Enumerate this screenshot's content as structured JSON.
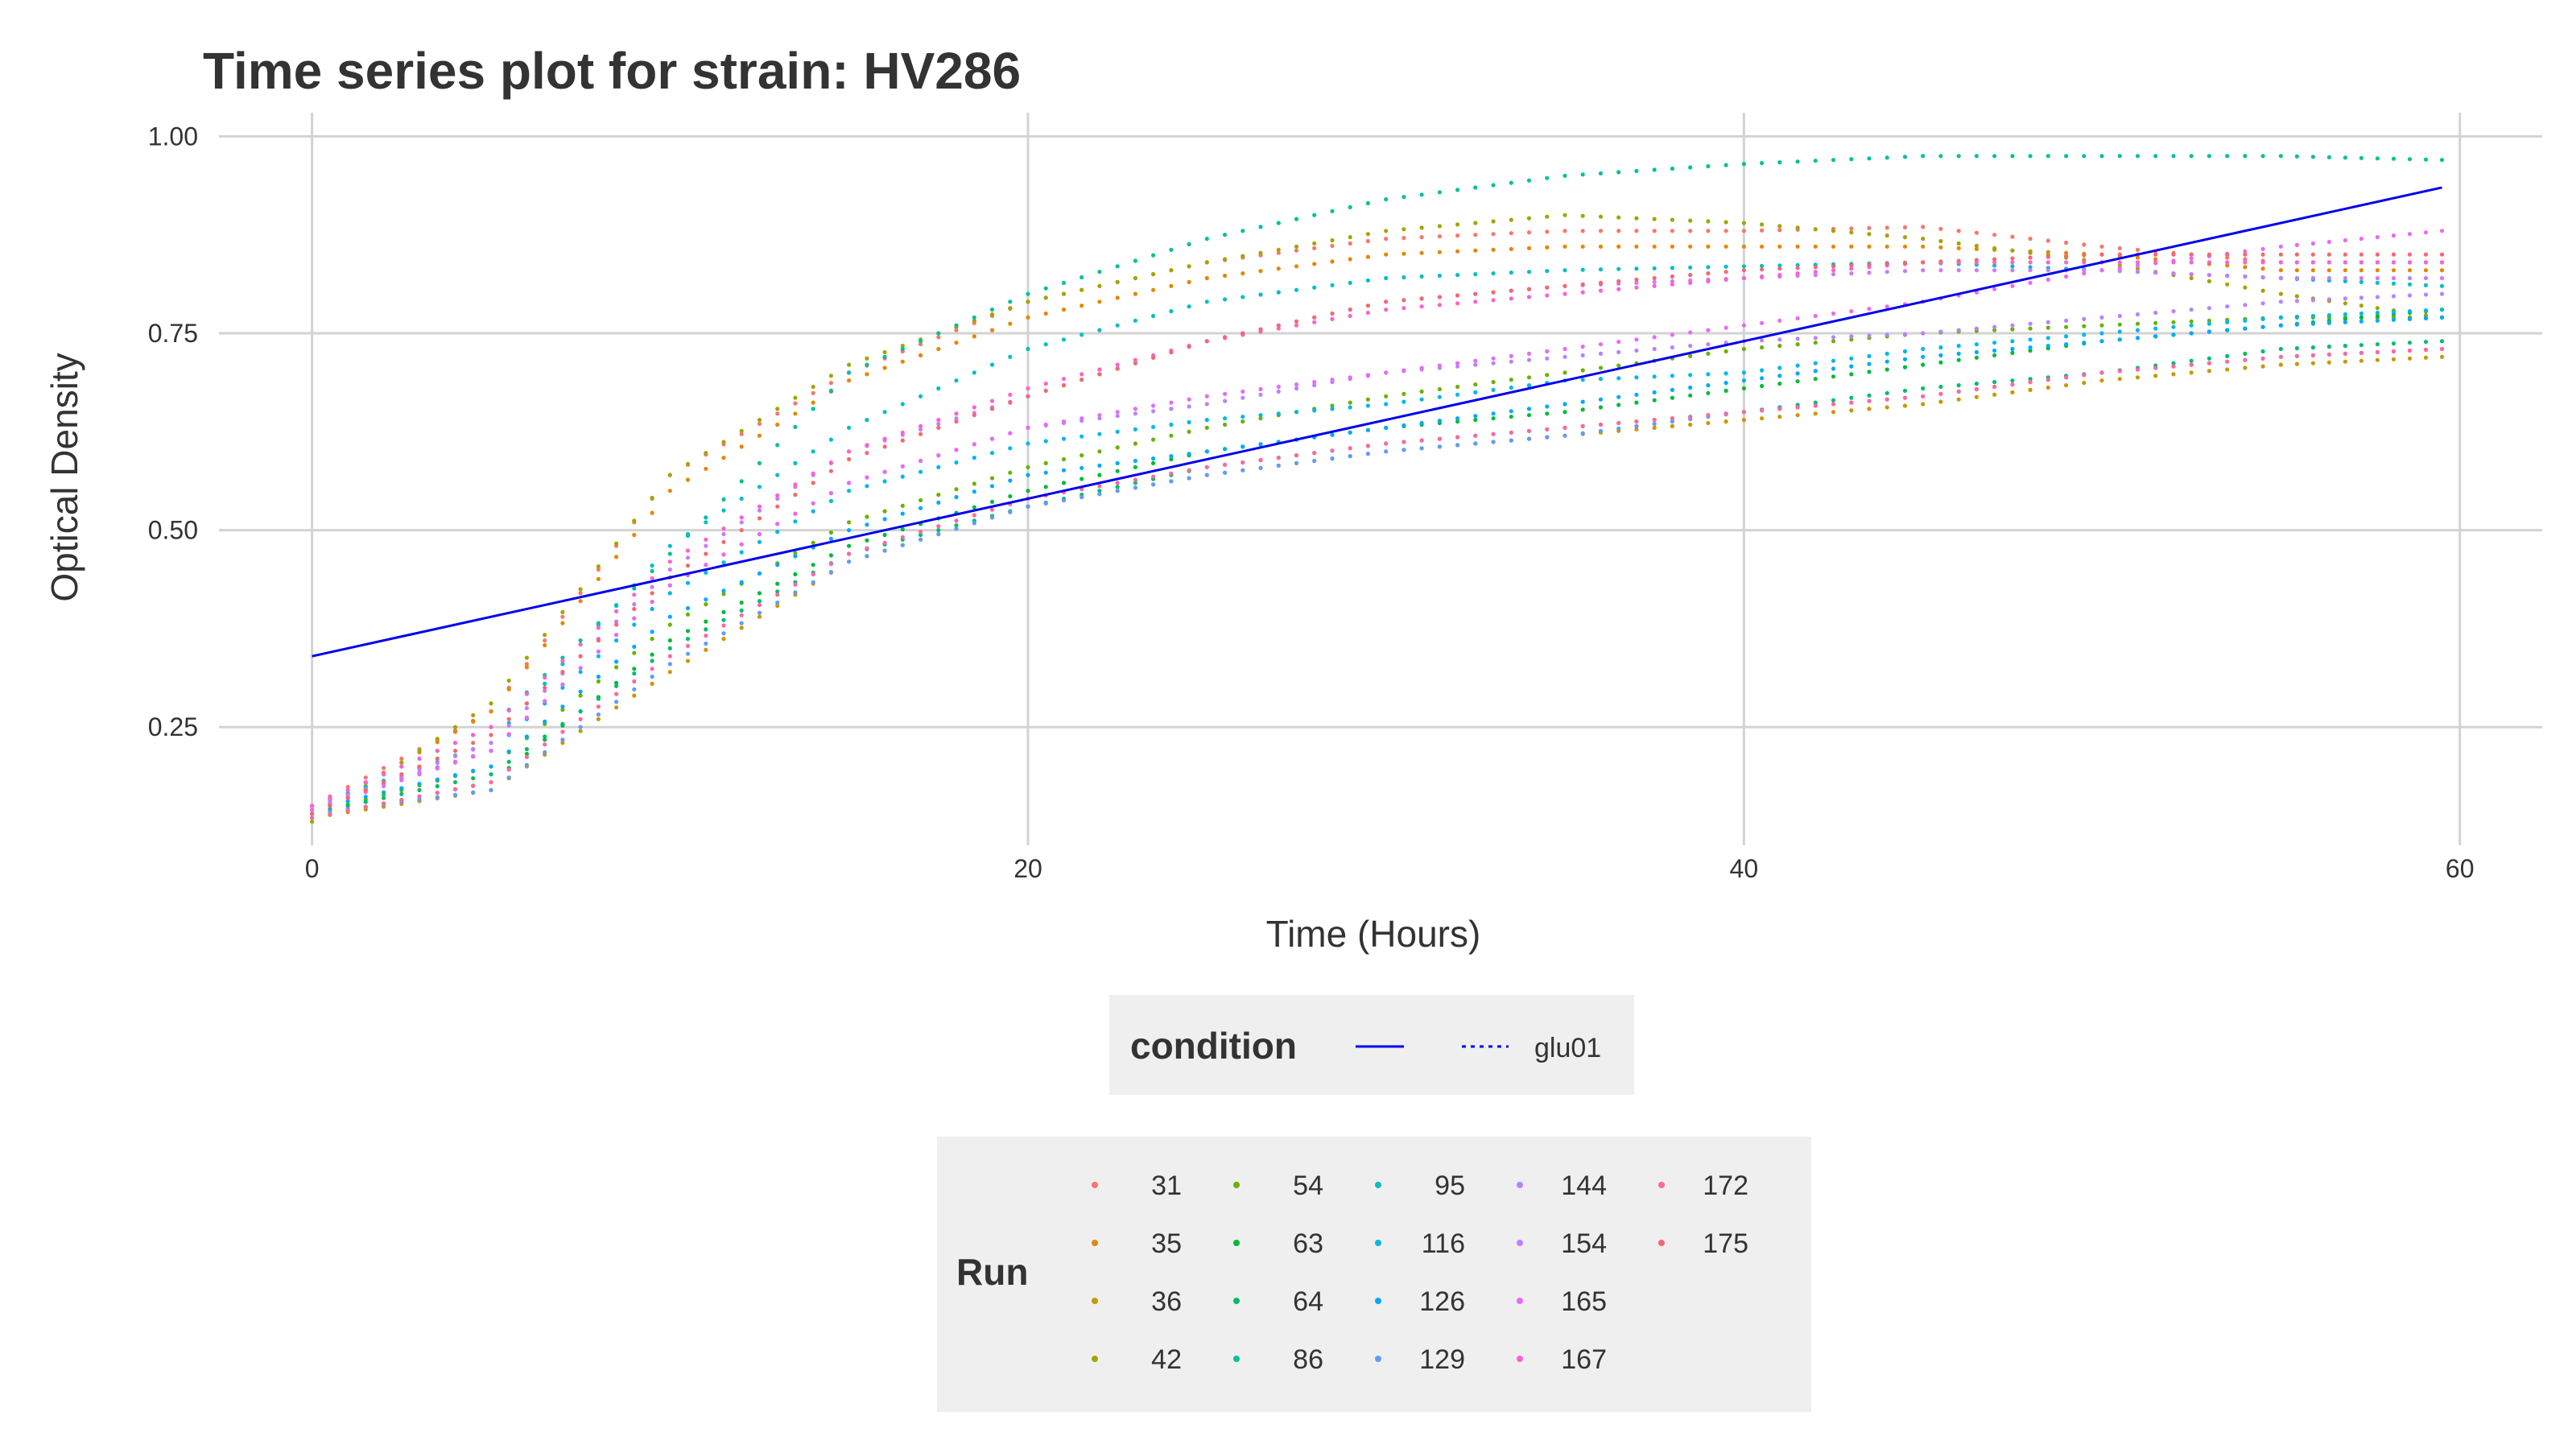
{
  "chart_data": {
    "type": "scatter",
    "title": "Time series plot for strain: HV286",
    "xlabel": "Time (Hours)",
    "ylabel": "Optical Density",
    "xlim": [
      -2.6,
      62.3
    ],
    "ylim": [
      0.1,
      1.03
    ],
    "x_ticks": [
      0,
      20,
      40,
      60
    ],
    "x_tick_labels": [
      "0",
      "20",
      "40",
      "60"
    ],
    "y_ticks": [
      0.25,
      0.5,
      0.75,
      1.0
    ],
    "y_tick_labels": [
      "0.25",
      "0.50",
      "0.75",
      "1.00"
    ],
    "grid": true,
    "legend_position": "bottom",
    "condition_legend": {
      "title": "condition",
      "entries": [
        {
          "label": "",
          "style": "solid",
          "color": "#0000ee"
        },
        {
          "label": "glu01",
          "style": "dotted",
          "color": "#0000ee"
        }
      ]
    },
    "fit_line": {
      "x": [
        0,
        59.5
      ],
      "y": [
        0.34,
        0.935
      ],
      "color": "#0000ee"
    },
    "run_legend_title": "Run",
    "series": [
      {
        "name": "31",
        "color": "#f8766d",
        "points": [
          [
            0,
            0.15
          ],
          [
            5,
            0.27
          ],
          [
            10,
            0.57
          ],
          [
            15,
            0.7
          ],
          [
            20,
            0.79
          ],
          [
            25,
            0.84
          ],
          [
            30,
            0.87
          ],
          [
            35,
            0.88
          ],
          [
            40,
            0.88
          ],
          [
            45,
            0.885
          ],
          [
            50,
            0.86
          ],
          [
            55,
            0.84
          ],
          [
            59.5,
            0.84
          ]
        ]
      },
      {
        "name": "35",
        "color": "#e58700",
        "points": [
          [
            0,
            0.14
          ],
          [
            5,
            0.27
          ],
          [
            10,
            0.55
          ],
          [
            15,
            0.69
          ],
          [
            20,
            0.77
          ],
          [
            25,
            0.82
          ],
          [
            30,
            0.85
          ],
          [
            35,
            0.86
          ],
          [
            40,
            0.86
          ],
          [
            45,
            0.86
          ],
          [
            50,
            0.85
          ],
          [
            55,
            0.83
          ],
          [
            59.5,
            0.83
          ]
        ]
      },
      {
        "name": "36",
        "color": "#c99800",
        "points": [
          [
            0,
            0.135
          ],
          [
            5,
            0.17
          ],
          [
            10,
            0.32
          ],
          [
            15,
            0.46
          ],
          [
            20,
            0.53
          ],
          [
            25,
            0.57
          ],
          [
            30,
            0.6
          ],
          [
            35,
            0.62
          ],
          [
            40,
            0.64
          ],
          [
            45,
            0.66
          ],
          [
            50,
            0.69
          ],
          [
            55,
            0.71
          ],
          [
            59.5,
            0.72
          ]
        ]
      },
      {
        "name": "42",
        "color": "#a3a500",
        "points": [
          [
            0,
            0.13
          ],
          [
            5,
            0.28
          ],
          [
            10,
            0.57
          ],
          [
            15,
            0.71
          ],
          [
            20,
            0.79
          ],
          [
            25,
            0.84
          ],
          [
            30,
            0.88
          ],
          [
            35,
            0.9
          ],
          [
            40,
            0.89
          ],
          [
            45,
            0.87
          ],
          [
            50,
            0.84
          ],
          [
            55,
            0.8
          ],
          [
            59.5,
            0.77
          ]
        ]
      },
      {
        "name": "54",
        "color": "#6bb100",
        "points": [
          [
            0,
            0.14
          ],
          [
            5,
            0.2
          ],
          [
            10,
            0.38
          ],
          [
            15,
            0.51
          ],
          [
            20,
            0.58
          ],
          [
            25,
            0.63
          ],
          [
            30,
            0.67
          ],
          [
            35,
            0.7
          ],
          [
            40,
            0.73
          ],
          [
            45,
            0.75
          ],
          [
            50,
            0.76
          ],
          [
            55,
            0.77
          ],
          [
            59.5,
            0.77
          ]
        ]
      },
      {
        "name": "63",
        "color": "#00ba38",
        "points": [
          [
            0,
            0.135
          ],
          [
            5,
            0.18
          ],
          [
            10,
            0.36
          ],
          [
            15,
            0.48
          ],
          [
            20,
            0.55
          ],
          [
            25,
            0.6
          ],
          [
            30,
            0.63
          ],
          [
            35,
            0.65
          ],
          [
            40,
            0.68
          ],
          [
            45,
            0.71
          ],
          [
            50,
            0.74
          ],
          [
            55,
            0.76
          ],
          [
            59.5,
            0.78
          ]
        ]
      },
      {
        "name": "64",
        "color": "#00be67",
        "points": [
          [
            0,
            0.14
          ],
          [
            5,
            0.19
          ],
          [
            10,
            0.35
          ],
          [
            15,
            0.47
          ],
          [
            20,
            0.53
          ],
          [
            25,
            0.58
          ],
          [
            30,
            0.61
          ],
          [
            35,
            0.63
          ],
          [
            40,
            0.65
          ],
          [
            45,
            0.68
          ],
          [
            50,
            0.7
          ],
          [
            55,
            0.73
          ],
          [
            59.5,
            0.74
          ]
        ]
      },
      {
        "name": "86",
        "color": "#00c19a",
        "points": [
          [
            0,
            0.15
          ],
          [
            5,
            0.25
          ],
          [
            10,
            0.47
          ],
          [
            15,
            0.7
          ],
          [
            20,
            0.8
          ],
          [
            25,
            0.87
          ],
          [
            30,
            0.92
          ],
          [
            35,
            0.95
          ],
          [
            40,
            0.965
          ],
          [
            45,
            0.975
          ],
          [
            50,
            0.975
          ],
          [
            55,
            0.975
          ],
          [
            59.5,
            0.97
          ]
        ]
      },
      {
        "name": "95",
        "color": "#00bfc4",
        "points": [
          [
            0,
            0.15
          ],
          [
            5,
            0.23
          ],
          [
            10,
            0.48
          ],
          [
            15,
            0.63
          ],
          [
            20,
            0.73
          ],
          [
            25,
            0.79
          ],
          [
            30,
            0.82
          ],
          [
            35,
            0.83
          ],
          [
            40,
            0.835
          ],
          [
            45,
            0.84
          ],
          [
            50,
            0.83
          ],
          [
            55,
            0.82
          ],
          [
            59.5,
            0.81
          ]
        ]
      },
      {
        "name": "116",
        "color": "#00b8e7",
        "points": [
          [
            0,
            0.15
          ],
          [
            5,
            0.22
          ],
          [
            10,
            0.42
          ],
          [
            15,
            0.55
          ],
          [
            20,
            0.61
          ],
          [
            25,
            0.64
          ],
          [
            30,
            0.66
          ],
          [
            35,
            0.69
          ],
          [
            40,
            0.7
          ],
          [
            45,
            0.73
          ],
          [
            50,
            0.75
          ],
          [
            55,
            0.77
          ],
          [
            59.5,
            0.78
          ]
        ]
      },
      {
        "name": "126",
        "color": "#00a9ff",
        "points": [
          [
            0,
            0.145
          ],
          [
            5,
            0.2
          ],
          [
            10,
            0.39
          ],
          [
            15,
            0.5
          ],
          [
            20,
            0.57
          ],
          [
            25,
            0.6
          ],
          [
            30,
            0.63
          ],
          [
            35,
            0.66
          ],
          [
            40,
            0.69
          ],
          [
            45,
            0.72
          ],
          [
            50,
            0.74
          ],
          [
            55,
            0.76
          ],
          [
            59.5,
            0.77
          ]
        ]
      },
      {
        "name": "129",
        "color": "#619cff",
        "points": [
          [
            0,
            0.14
          ],
          [
            5,
            0.17
          ],
          [
            10,
            0.33
          ],
          [
            15,
            0.46
          ],
          [
            20,
            0.53
          ],
          [
            25,
            0.57
          ],
          [
            30,
            0.6
          ],
          [
            35,
            0.62
          ],
          [
            40,
            0.65
          ],
          [
            45,
            0.67
          ],
          [
            50,
            0.7
          ],
          [
            55,
            0.72
          ],
          [
            59.5,
            0.73
          ]
        ]
      },
      {
        "name": "144",
        "color": "#b983ff",
        "points": [
          [
            0,
            0.15
          ],
          [
            5,
            0.22
          ],
          [
            10,
            0.43
          ],
          [
            15,
            0.56
          ],
          [
            20,
            0.63
          ],
          [
            25,
            0.66
          ],
          [
            30,
            0.7
          ],
          [
            35,
            0.72
          ],
          [
            40,
            0.74
          ],
          [
            45,
            0.75
          ],
          [
            50,
            0.77
          ],
          [
            55,
            0.79
          ],
          [
            59.5,
            0.8
          ]
        ]
      },
      {
        "name": "154",
        "color": "#c77cff",
        "points": [
          [
            0,
            0.145
          ],
          [
            5,
            0.23
          ],
          [
            10,
            0.45
          ],
          [
            15,
            0.6
          ],
          [
            20,
            0.67
          ],
          [
            25,
            0.74
          ],
          [
            30,
            0.79
          ],
          [
            35,
            0.81
          ],
          [
            40,
            0.82
          ],
          [
            45,
            0.83
          ],
          [
            50,
            0.83
          ],
          [
            55,
            0.82
          ],
          [
            59.5,
            0.82
          ]
        ]
      },
      {
        "name": "165",
        "color": "#e76bf3",
        "points": [
          [
            0,
            0.145
          ],
          [
            5,
            0.22
          ],
          [
            10,
            0.43
          ],
          [
            15,
            0.56
          ],
          [
            20,
            0.63
          ],
          [
            25,
            0.67
          ],
          [
            30,
            0.7
          ],
          [
            35,
            0.73
          ],
          [
            40,
            0.76
          ],
          [
            45,
            0.79
          ],
          [
            50,
            0.83
          ],
          [
            55,
            0.86
          ],
          [
            59.5,
            0.88
          ]
        ]
      },
      {
        "name": "167",
        "color": "#fd61d1",
        "points": [
          [
            0,
            0.15
          ],
          [
            5,
            0.25
          ],
          [
            10,
            0.46
          ],
          [
            15,
            0.6
          ],
          [
            20,
            0.68
          ],
          [
            25,
            0.74
          ],
          [
            30,
            0.78
          ],
          [
            35,
            0.8
          ],
          [
            40,
            0.82
          ],
          [
            45,
            0.84
          ],
          [
            50,
            0.84
          ],
          [
            55,
            0.84
          ],
          [
            59.5,
            0.84
          ]
        ]
      },
      {
        "name": "172",
        "color": "#ff67a4",
        "points": [
          [
            0,
            0.135
          ],
          [
            5,
            0.18
          ],
          [
            10,
            0.34
          ],
          [
            15,
            0.47
          ],
          [
            20,
            0.54
          ],
          [
            25,
            0.58
          ],
          [
            30,
            0.61
          ],
          [
            35,
            0.63
          ],
          [
            40,
            0.65
          ],
          [
            45,
            0.67
          ],
          [
            50,
            0.7
          ],
          [
            55,
            0.72
          ],
          [
            59.5,
            0.73
          ]
        ]
      },
      {
        "name": "175",
        "color": "#f3696e",
        "points": [
          [
            0,
            0.14
          ],
          [
            5,
            0.24
          ],
          [
            10,
            0.44
          ],
          [
            15,
            0.59
          ],
          [
            20,
            0.67
          ],
          [
            25,
            0.74
          ],
          [
            30,
            0.79
          ],
          [
            35,
            0.81
          ],
          [
            40,
            0.83
          ],
          [
            45,
            0.84
          ],
          [
            50,
            0.85
          ],
          [
            55,
            0.85
          ],
          [
            59.5,
            0.85
          ]
        ]
      }
    ]
  }
}
